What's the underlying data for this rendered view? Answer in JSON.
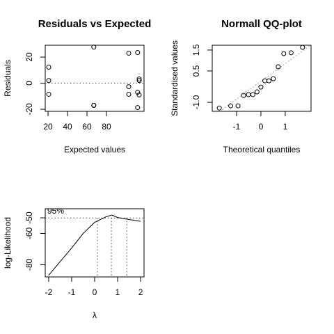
{
  "chart_data": [
    {
      "type": "scatter",
      "title": "Residuals vs Expected",
      "xlabel": "Expected values",
      "ylabel": "Residuals",
      "xlim": [
        17.1,
        118.6
      ],
      "ylim": [
        -21.6,
        29.1
      ],
      "xticks": [
        20,
        40,
        60,
        80
      ],
      "yticks": [
        -20,
        0,
        20
      ],
      "x": [
        20.7,
        20.7,
        20.7,
        67,
        67,
        67,
        102.9,
        102.9,
        102.9,
        112,
        113.6,
        113.6,
        112,
        113.6,
        112
      ],
      "values": [
        12.3,
        2,
        -8.5,
        27.7,
        -17,
        -17,
        23,
        -2.7,
        -8.5,
        23.5,
        3.2,
        2,
        -7,
        -9,
        -18.7
      ],
      "hline": 0
    },
    {
      "type": "scatter",
      "title": "Normall QQ-plot",
      "xlabel": "Theoretical quantiles",
      "ylabel": "Standardised values",
      "xlim": [
        -2,
        2.06
      ],
      "ylim": [
        -1.43,
        1.73
      ],
      "xticks": [
        -1,
        0,
        1
      ],
      "yticks": [
        {
          "value": -1,
          "label": "-1.0"
        },
        0.5,
        1.5
      ],
      "x": [
        -1.71,
        -1.24,
        -0.94,
        -0.71,
        -0.51,
        -0.33,
        -0.16,
        0,
        0.16,
        0.33,
        0.51,
        0.71,
        0.94,
        1.24,
        1.71
      ],
      "values": [
        -1.27,
        -1.17,
        -1.17,
        -0.67,
        -0.63,
        -0.63,
        -0.5,
        -0.27,
        0.03,
        0.03,
        0.13,
        0.7,
        1.33,
        1.37,
        1.63
      ],
      "refline": {
        "intercept": 0,
        "slope": 0.85
      }
    },
    {
      "type": "line",
      "xlabel": "λ",
      "ylabel": "log-Likelihood",
      "annotation": "95%",
      "xlim": [
        -2.15,
        2.15
      ],
      "ylim": [
        -87.8,
        -44.2
      ],
      "xticks": [
        -2,
        -1,
        0,
        1,
        2
      ],
      "yticks": [
        -80,
        -60,
        -50
      ],
      "x": [
        -2,
        -1.5,
        -1,
        -0.5,
        0,
        0.5,
        0.75,
        1,
        1.5,
        2
      ],
      "values": [
        -86.7,
        -78,
        -69.3,
        -60,
        -52.9,
        -49.3,
        -48.2,
        -49.8,
        -51.1,
        -52.2
      ],
      "hline": -50.1,
      "vlines": [
        0.12,
        0.73,
        1.4
      ]
    }
  ]
}
